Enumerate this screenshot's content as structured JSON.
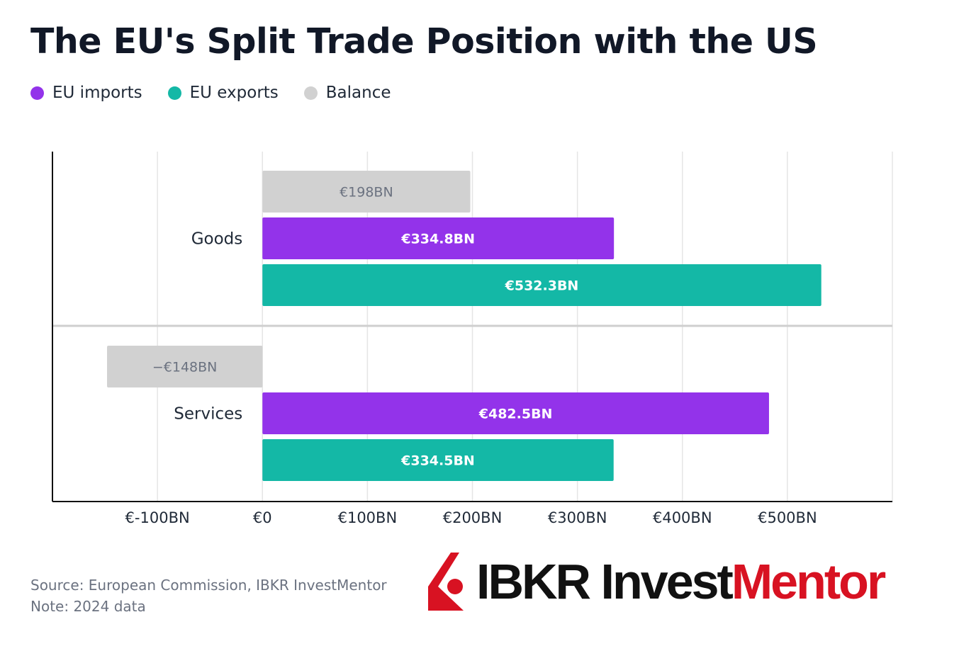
{
  "title": "The EU's Split Trade Position with the US",
  "legend": [
    {
      "label": "EU imports",
      "color": "#9333ea"
    },
    {
      "label": "EU exports",
      "color": "#14b8a6"
    },
    {
      "label": "Balance",
      "color": "#d1d1d1"
    }
  ],
  "chart_data": {
    "type": "bar",
    "orientation": "horizontal",
    "categories": [
      "Goods",
      "Services"
    ],
    "series": [
      {
        "name": "Balance",
        "color": "#d1d1d1",
        "label_color": "#6b7280",
        "values": [
          198,
          -148
        ],
        "labels": [
          "€198BN",
          "−€148BN"
        ]
      },
      {
        "name": "EU imports",
        "color": "#9333ea",
        "label_color": "#ffffff",
        "values": [
          334.8,
          482.5
        ],
        "labels": [
          "€334.8BN",
          "€482.5BN"
        ]
      },
      {
        "name": "EU exports",
        "color": "#14b8a6",
        "label_color": "#ffffff",
        "values": [
          532.3,
          334.5
        ],
        "labels": [
          "€532.3BN",
          "€334.5BN"
        ]
      }
    ],
    "xlim": [
      -200,
      600
    ],
    "ticks": [
      -100,
      0,
      100,
      200,
      300,
      400,
      500
    ],
    "tick_labels": [
      "€-100BN",
      "€0",
      "€100BN",
      "€200BN",
      "€300BN",
      "€400BN",
      "€500BN"
    ],
    "grid": true,
    "xlabel": "",
    "ylabel": ""
  },
  "footer": {
    "source": "Source: European Commission, IBKR InvestMentor",
    "note": "Note: 2024 data"
  },
  "logo": {
    "part1": "IBKR Invest",
    "part2": "Mentor",
    "colors": {
      "dark": "#111111",
      "red": "#d81222"
    }
  }
}
